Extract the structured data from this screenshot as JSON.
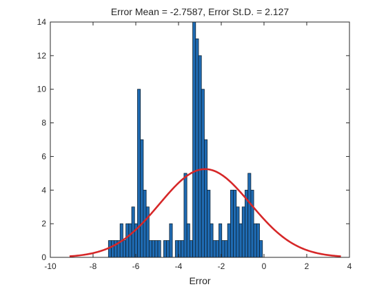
{
  "chart_data": {
    "type": "bar",
    "title": "Error Mean = -2.7587, Error St.D. = 2.127",
    "xlabel": "Error",
    "ylabel": "",
    "xlim": [
      -10,
      4
    ],
    "ylim": [
      0,
      14
    ],
    "x_ticks": [
      -10,
      -8,
      -6,
      -4,
      -2,
      0,
      2,
      4
    ],
    "y_ticks": [
      0,
      2,
      4,
      6,
      8,
      10,
      12,
      14
    ],
    "grid": false,
    "legend": "none",
    "bin_width": 0.136,
    "bin_start": -7.28,
    "values": [
      1,
      1,
      1,
      1,
      2,
      1,
      2,
      2,
      3,
      2,
      10,
      7,
      4,
      3,
      1,
      1,
      1,
      1,
      0,
      1,
      1,
      2,
      0,
      1,
      1,
      1,
      5,
      2,
      1,
      14,
      13,
      12,
      10,
      7,
      4,
      2,
      1,
      1,
      2,
      1,
      1,
      2,
      4,
      4,
      3,
      2,
      3,
      4,
      5,
      4,
      2,
      2,
      1
    ],
    "fit": {
      "mean": -2.7587,
      "std": 2.127,
      "peak": 5.25,
      "x_range": [
        -9.1,
        3.6
      ],
      "color": "#d62728"
    },
    "bar_color": "#1f6bb3",
    "bar_edge_color": "#0d2233"
  }
}
